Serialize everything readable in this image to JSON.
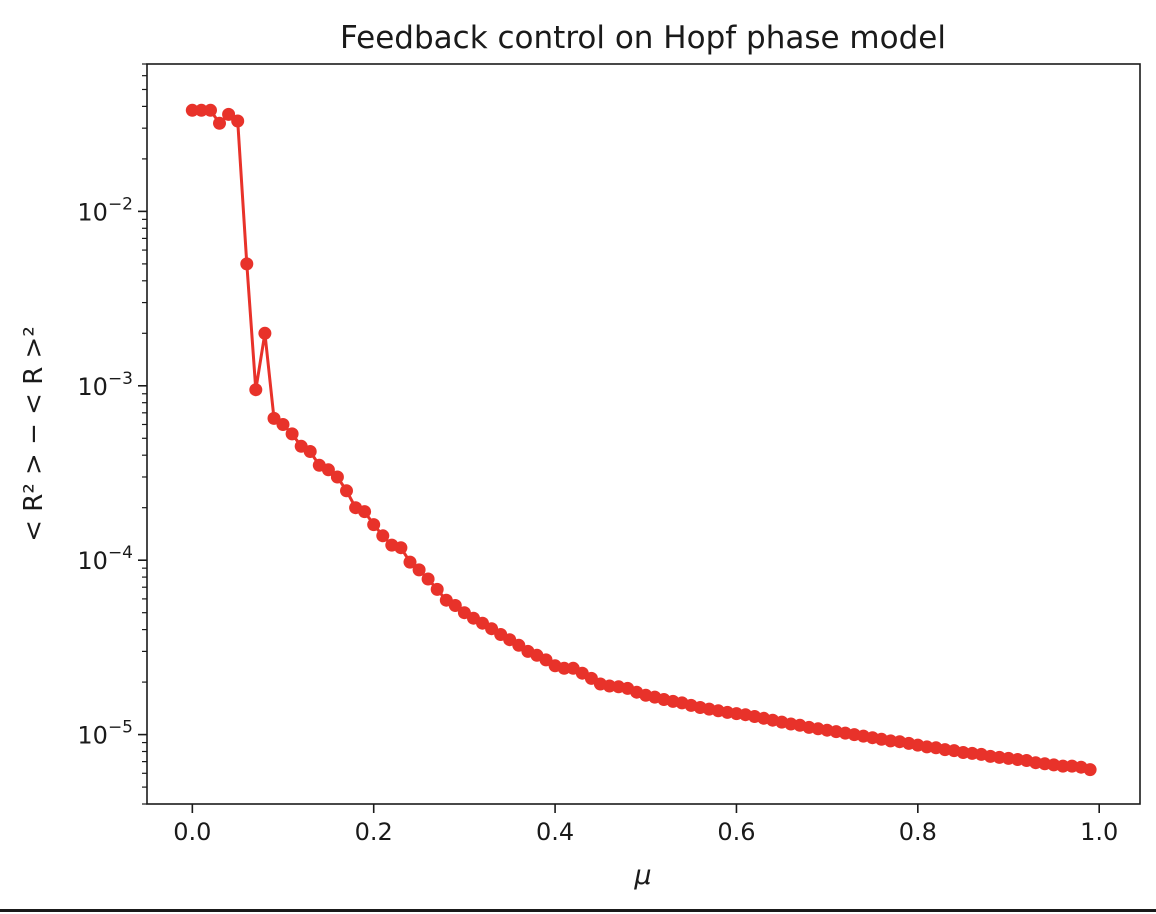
{
  "chart_data": {
    "type": "line",
    "title": "Feedback control on Hopf phase model",
    "xlabel": "μ",
    "ylabel": "< R² > − < R >²",
    "xscale": "linear",
    "yscale": "log",
    "xlim": [
      -0.05,
      1.045
    ],
    "ylim": [
      4e-06,
      0.07
    ],
    "xticks": [
      0.0,
      0.2,
      0.4,
      0.6,
      0.8,
      1.0
    ],
    "xtick_labels": [
      "0.0",
      "0.2",
      "0.4",
      "0.6",
      "0.8",
      "1.0"
    ],
    "yticks": [
      1e-05,
      0.0001,
      0.001,
      0.01
    ],
    "ytick_labels": [
      {
        "base": "10",
        "exp": "−5"
      },
      {
        "base": "10",
        "exp": "−4"
      },
      {
        "base": "10",
        "exp": "−3"
      },
      {
        "base": "10",
        "exp": "−2"
      }
    ],
    "grid": false,
    "line_color": "#e8322a",
    "marker": "circle",
    "series": [
      {
        "x": [
          0.0,
          0.01,
          0.02,
          0.03,
          0.04,
          0.05,
          0.06,
          0.07,
          0.08,
          0.09,
          0.1,
          0.11,
          0.12,
          0.13,
          0.14,
          0.15,
          0.16,
          0.17,
          0.18,
          0.19,
          0.2,
          0.21,
          0.22,
          0.23,
          0.24,
          0.25,
          0.26,
          0.27,
          0.28,
          0.29,
          0.3,
          0.31,
          0.32,
          0.33,
          0.34,
          0.35,
          0.36,
          0.37,
          0.38,
          0.39,
          0.4,
          0.41,
          0.42,
          0.43,
          0.44,
          0.45,
          0.46,
          0.47,
          0.48,
          0.49,
          0.5,
          0.51,
          0.52,
          0.53,
          0.54,
          0.55,
          0.56,
          0.57,
          0.58,
          0.59,
          0.6,
          0.61,
          0.62,
          0.63,
          0.64,
          0.65,
          0.66,
          0.67,
          0.68,
          0.69,
          0.7,
          0.71,
          0.72,
          0.73,
          0.74,
          0.75,
          0.76,
          0.77,
          0.78,
          0.79,
          0.8,
          0.81,
          0.82,
          0.83,
          0.84,
          0.85,
          0.86,
          0.87,
          0.88,
          0.89,
          0.9,
          0.91,
          0.92,
          0.93,
          0.94,
          0.95,
          0.96,
          0.97,
          0.98,
          0.99
        ],
        "y": [
          0.038,
          0.038,
          0.038,
          0.032,
          0.036,
          0.033,
          0.005,
          0.00095,
          0.002,
          0.00065,
          0.0006,
          0.00053,
          0.00045,
          0.00042,
          0.00035,
          0.00033,
          0.0003,
          0.00025,
          0.0002,
          0.00019,
          0.00016,
          0.000138,
          0.000122,
          0.000118,
          9.75e-05,
          8.8e-05,
          7.8e-05,
          6.8e-05,
          5.9e-05,
          5.5e-05,
          5e-05,
          4.65e-05,
          4.35e-05,
          4.05e-05,
          3.75e-05,
          3.5e-05,
          3.25e-05,
          3e-05,
          2.85e-05,
          2.68e-05,
          2.48e-05,
          2.4e-05,
          2.4e-05,
          2.25e-05,
          2.1e-05,
          1.95e-05,
          1.9e-05,
          1.88e-05,
          1.84e-05,
          1.75e-05,
          1.68e-05,
          1.64e-05,
          1.59e-05,
          1.55e-05,
          1.52e-05,
          1.47e-05,
          1.43e-05,
          1.4e-05,
          1.37e-05,
          1.34e-05,
          1.32e-05,
          1.3e-05,
          1.27e-05,
          1.24e-05,
          1.21e-05,
          1.18e-05,
          1.15e-05,
          1.13e-05,
          1.1e-05,
          1.08e-05,
          1.06e-05,
          1.04e-05,
          1.02e-05,
          1e-05,
          9.8e-06,
          9.6e-06,
          9.4e-06,
          9.2e-06,
          9.1e-06,
          8.9e-06,
          8.7e-06,
          8.5e-06,
          8.4e-06,
          8.2e-06,
          8.1e-06,
          7.9e-06,
          7.8e-06,
          7.7e-06,
          7.5e-06,
          7.4e-06,
          7.3e-06,
          7.2e-06,
          7.1e-06,
          6.9e-06,
          6.8e-06,
          6.7e-06,
          6.6e-06,
          6.6e-06,
          6.5e-06,
          6.3e-06
        ]
      }
    ]
  }
}
